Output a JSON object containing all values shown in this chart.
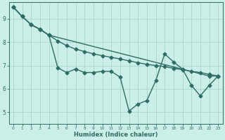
{
  "title": "",
  "xlabel": "Humidex (Indice chaleur)",
  "ylabel": "",
  "background_color": "#cceee8",
  "grid_color": "#aad4cc",
  "line_color": "#2d6e62",
  "xlim": [
    -0.5,
    23.5
  ],
  "ylim": [
    4.5,
    9.7
  ],
  "yticks": [
    5,
    6,
    7,
    8,
    9
  ],
  "xticks": [
    0,
    1,
    2,
    3,
    4,
    5,
    6,
    7,
    8,
    9,
    10,
    11,
    12,
    13,
    14,
    15,
    16,
    17,
    18,
    19,
    20,
    21,
    22,
    23
  ],
  "line1_x": [
    0,
    1,
    2,
    3,
    4,
    22,
    23
  ],
  "line1_y": [
    9.5,
    9.1,
    8.75,
    8.55,
    8.3,
    6.55,
    6.55
  ],
  "line2_x": [
    0,
    1,
    2,
    3,
    4,
    5,
    6,
    7,
    8,
    9,
    10,
    11,
    12,
    13,
    14,
    15,
    16,
    17,
    18,
    19,
    20,
    21,
    22,
    23
  ],
  "line2_y": [
    9.5,
    9.1,
    8.75,
    8.55,
    8.3,
    6.9,
    6.7,
    6.85,
    6.7,
    6.7,
    6.75,
    6.75,
    6.5,
    5.05,
    5.35,
    5.5,
    6.35,
    7.5,
    7.15,
    6.85,
    6.15,
    5.7,
    6.15,
    6.55
  ],
  "line3_x": [
    0,
    1,
    2,
    3,
    4,
    5,
    6,
    7,
    8,
    9,
    10,
    11,
    12,
    13,
    14,
    15,
    16,
    17,
    18,
    19,
    20,
    21,
    22,
    23
  ],
  "line3_y": [
    9.5,
    9.1,
    8.75,
    8.55,
    8.3,
    8.05,
    7.85,
    7.7,
    7.6,
    7.5,
    7.42,
    7.35,
    7.28,
    7.2,
    7.12,
    7.05,
    7.0,
    6.95,
    6.88,
    6.82,
    6.75,
    6.7,
    6.62,
    6.55
  ],
  "marker": "D",
  "markersize": 2.5,
  "linewidth": 1.0
}
